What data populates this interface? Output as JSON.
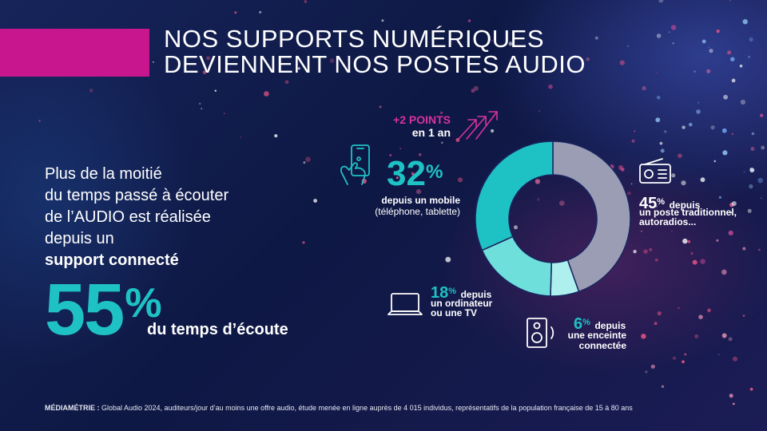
{
  "title": {
    "line1": "NOS SUPPORTS NUMÉRIQUES",
    "line2": "DEVIENNENT NOS POSTES AUDIO"
  },
  "intro": {
    "line1": "Plus de la moitié",
    "line2": "du temps passé à écouter",
    "line3": "de l’AUDIO est réalisée",
    "line4_prefix": "depuis un ",
    "line4_bold": "support connecté"
  },
  "headline": {
    "value": "55",
    "unit": "%",
    "label": "du temps d’écoute"
  },
  "trend": {
    "points": "+2 POINTS",
    "period": "en 1 an"
  },
  "segments": {
    "mobile": {
      "value": "32",
      "unit": "%",
      "label": "depuis un mobile",
      "detail": "(téléphone, tablette)"
    },
    "radio": {
      "value": "45",
      "unit": "%",
      "word": "depuis",
      "line1": "un poste traditionnel,",
      "line2": "autoradios..."
    },
    "computer": {
      "value": "18",
      "unit": "%",
      "word": "depuis",
      "line1": "un ordinateur",
      "line2": "ou une TV"
    },
    "speaker": {
      "value": "6",
      "unit": "%",
      "word": "depuis",
      "line1": "une enceinte",
      "line2": "connectée"
    }
  },
  "source": {
    "bold": "MÉDIAMÉTRIE :",
    "text": " Global Audio 2024, auditeurs/jour d’au moins une offre audio, étude menée en ligne auprès de 4 015 individus, représentatifs de la population française de 15 à 80 ans"
  },
  "colors": {
    "accent_magenta": "#c8168f",
    "teal": "#1fc2c4",
    "teal_light": "#6fdfdc",
    "teal_pale": "#aef0ee",
    "grey": "#9a9db4"
  },
  "icons": [
    "smartphone-touch-icon",
    "trend-arrows-icon",
    "radio-icon",
    "laptop-icon",
    "speaker-icon"
  ],
  "chart_data": {
    "type": "pie",
    "style": "donut",
    "categories": [
      "mobile",
      "poste traditionnel",
      "ordinateur ou TV",
      "enceinte connectée"
    ],
    "values": [
      32,
      45,
      18,
      6
    ],
    "colors": [
      "#1fc2c4",
      "#9a9db4",
      "#6fdfdc",
      "#aef0ee"
    ],
    "order_clockwise_from_top": [
      "poste traditionnel",
      "enceinte connectée",
      "ordinateur ou TV",
      "mobile"
    ]
  }
}
